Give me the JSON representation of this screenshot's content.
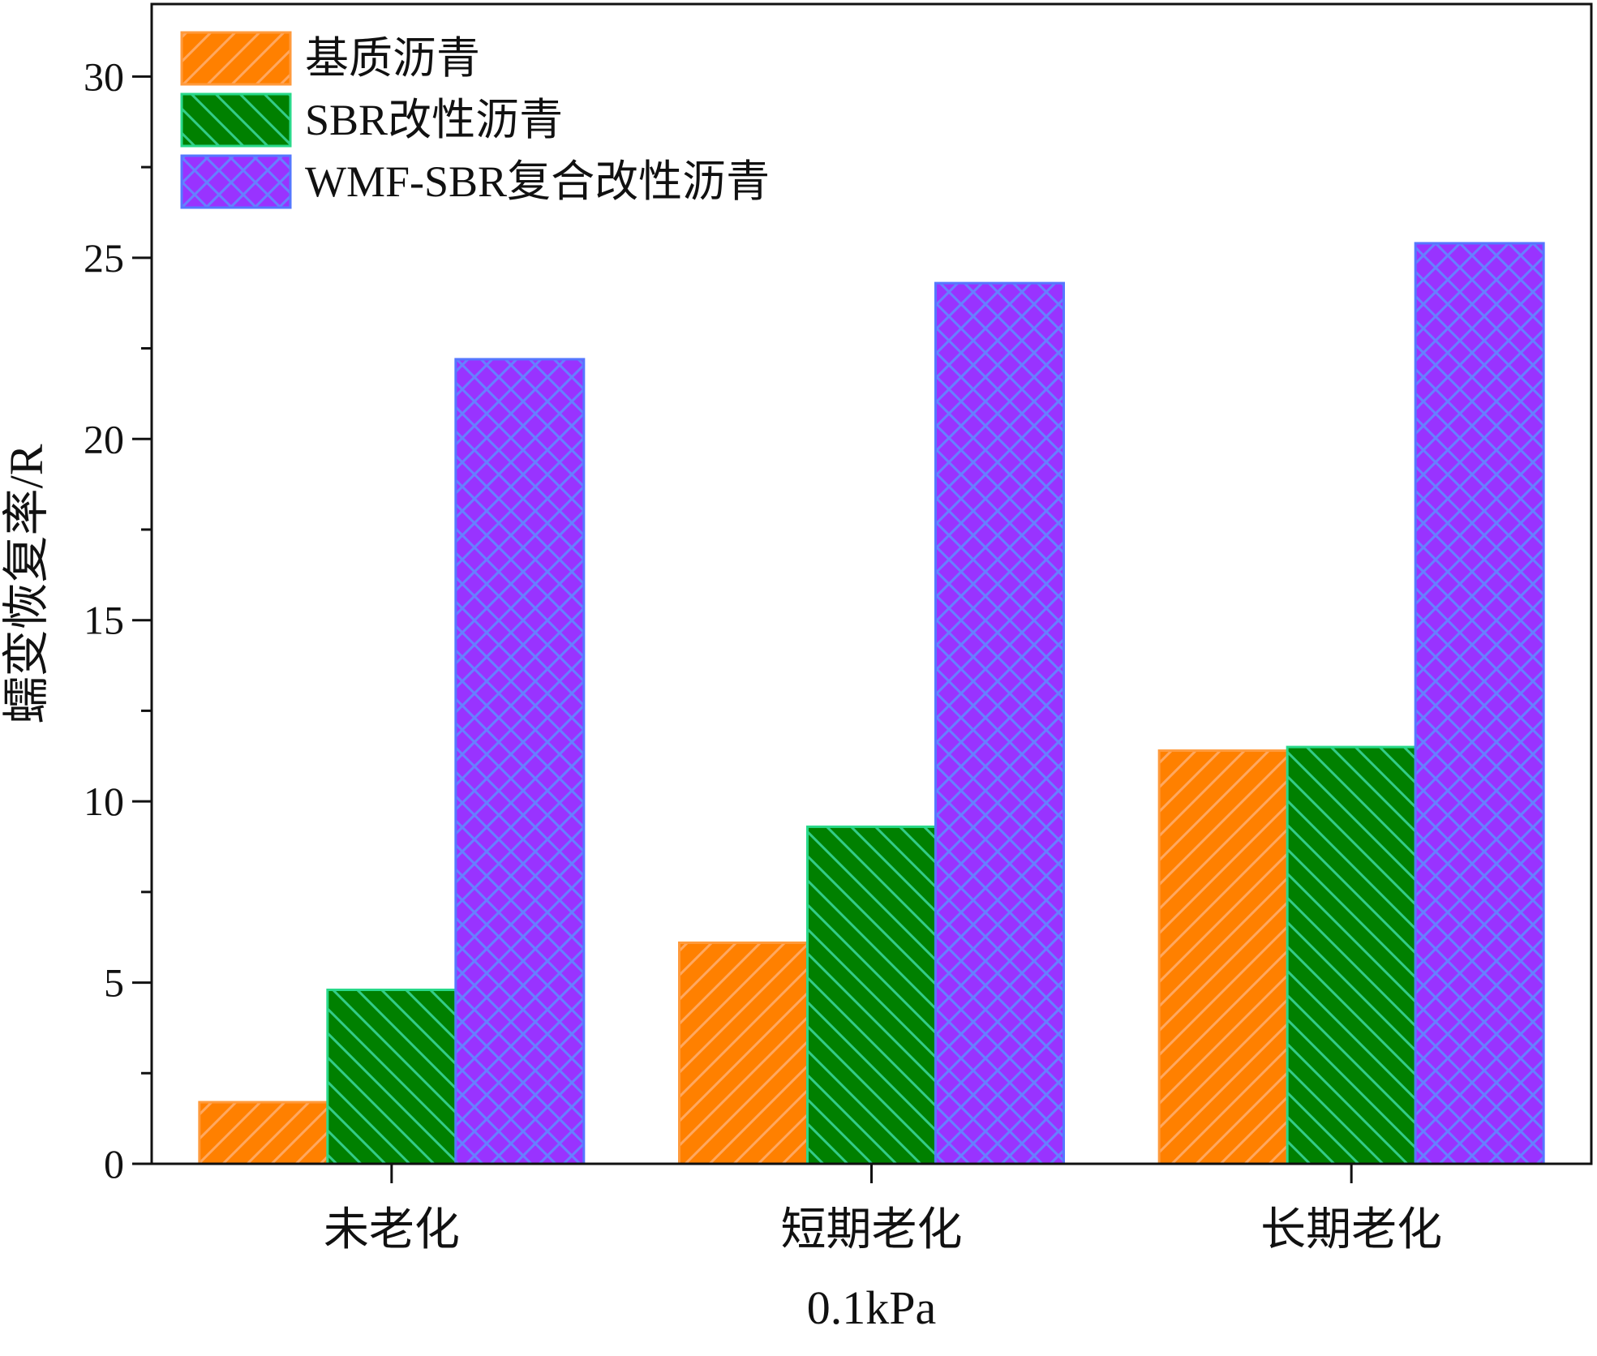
{
  "chart_data": {
    "type": "bar",
    "title": "",
    "xlabel": "0.1kPa",
    "ylabel": "蠕变恢复率/R",
    "ylim": [
      0,
      32
    ],
    "yticks": [
      0,
      5,
      10,
      15,
      20,
      25,
      30
    ],
    "categories": [
      "未老化",
      "短期老化",
      "长期老化"
    ],
    "series": [
      {
        "name": "基质沥青",
        "values": [
          1.7,
          6.1,
          11.4
        ],
        "color": "#FF8000",
        "edge": "#FF9A3C",
        "hatch": "#FFA860",
        "pattern": "diagonal-up"
      },
      {
        "name": "SBR改性沥青",
        "values": [
          4.8,
          9.3,
          11.5
        ],
        "color": "#008000",
        "edge": "#29D98A",
        "hatch": "#33CC88",
        "pattern": "diagonal-down"
      },
      {
        "name": "WMF-SBR复合改性沥青",
        "values": [
          22.2,
          24.3,
          25.4
        ],
        "color": "#9933FF",
        "edge": "#5577FF",
        "hatch": "#6680FF",
        "pattern": "crosshatch"
      }
    ],
    "legend_position": "top-left",
    "grid": false
  }
}
